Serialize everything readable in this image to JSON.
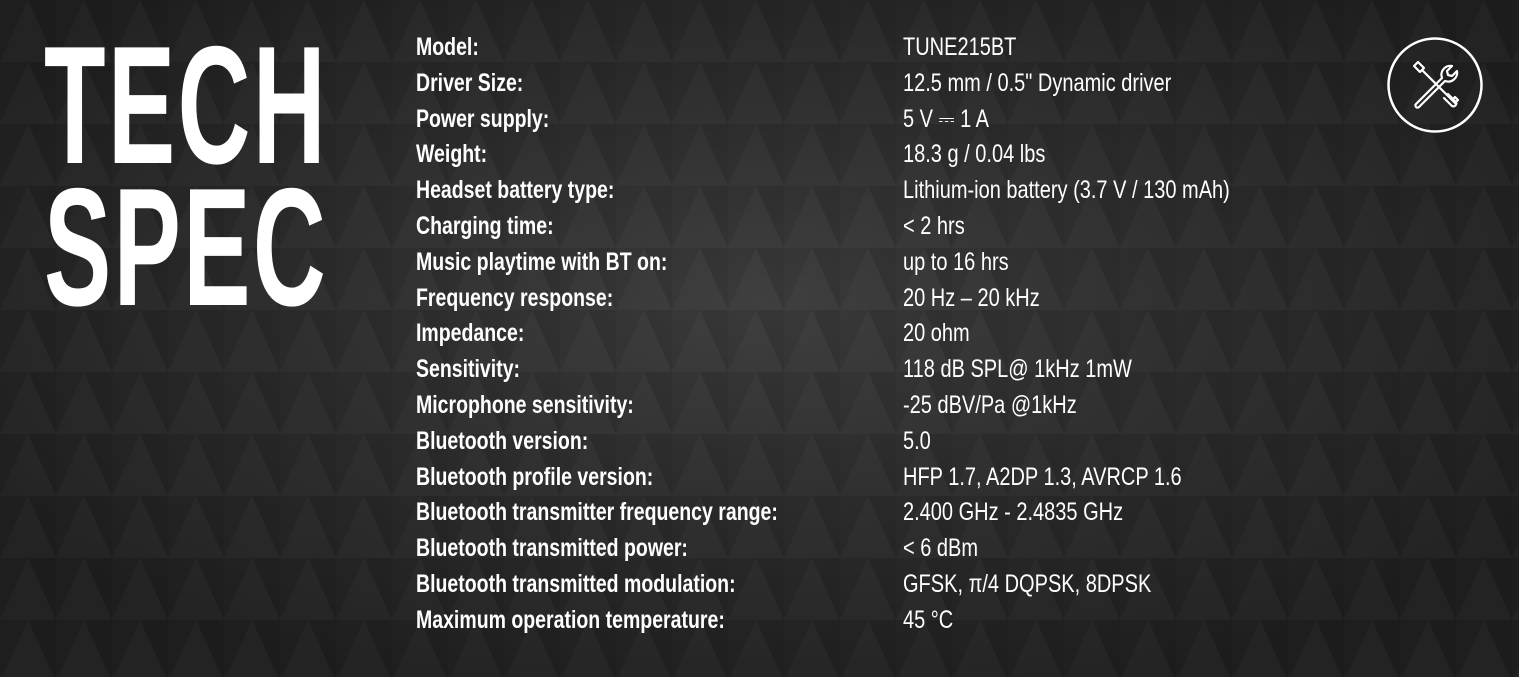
{
  "title": {
    "line1": "TECH",
    "line2": "SPEC"
  },
  "icon": "tools-icon",
  "colors": {
    "background": "#2c2c2c",
    "text": "#ffffff"
  },
  "specs": [
    {
      "label": "Model:",
      "value": "TUNE215BT"
    },
    {
      "label": "Driver Size:",
      "value": "12.5 mm / 0.5\" Dynamic driver"
    },
    {
      "label": "Power supply:",
      "value": "5 V ⎓ 1 A"
    },
    {
      "label": "Weight:",
      "value": "18.3 g / 0.04 lbs"
    },
    {
      "label": "Headset battery type:",
      "value": "Lithium-ion battery (3.7 V / 130 mAh)"
    },
    {
      "label": "Charging time:",
      "value": "< 2 hrs"
    },
    {
      "label": "Music playtime with BT on:",
      "value": "up to 16 hrs"
    },
    {
      "label": "Frequency response:",
      "value": "20 Hz – 20 kHz"
    },
    {
      "label": "Impedance:",
      "value": "20 ohm"
    },
    {
      "label": "Sensitivity:",
      "value": "118 dB SPL@ 1kHz 1mW"
    },
    {
      "label": "Microphone sensitivity:",
      "value": "-25 dBV/Pa @1kHz"
    },
    {
      "label": "Bluetooth version:",
      "value": "5.0"
    },
    {
      "label": "Bluetooth profile version:",
      "value": "HFP 1.7, A2DP 1.3, AVRCP 1.6"
    },
    {
      "label": "Bluetooth transmitter frequency range:",
      "value": "2.400 GHz - 2.4835 GHz"
    },
    {
      "label": "Bluetooth transmitted power:",
      "value": "< 6 dBm"
    },
    {
      "label": "Bluetooth transmitted modulation:",
      "value": "GFSK, π/4 DQPSK, 8DPSK"
    },
    {
      "label": "Maximum operation temperature:",
      "value": "45 °C"
    }
  ]
}
